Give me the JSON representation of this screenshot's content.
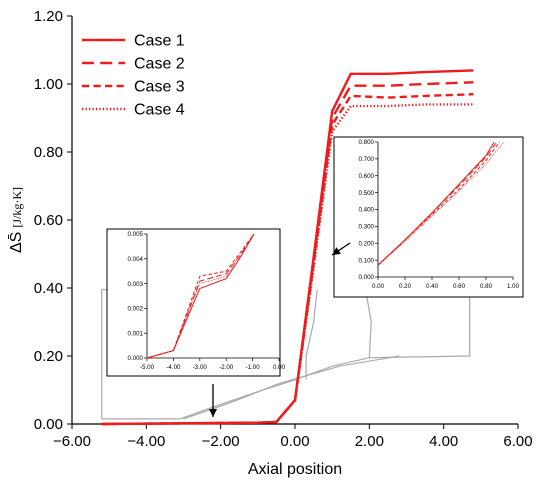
{
  "chart_data": [
    {
      "type": "line",
      "xlabel": "Axial position",
      "ylabel_prefix": "ΔS̄",
      "ylabel_unit": "[J/kg·K]",
      "xlim": [
        -6,
        6
      ],
      "ylim": [
        0,
        1.2
      ],
      "x_ticks": [
        -6,
        -4,
        -2,
        0,
        2,
        4,
        6
      ],
      "x_tick_labels": [
        "−6.00",
        "−4.00",
        "−2.00",
        "0.00",
        "2.00",
        "4.00",
        "6.00"
      ],
      "y_ticks": [
        0,
        0.2,
        0.4,
        0.6,
        0.8,
        1.0,
        1.2
      ],
      "y_tick_labels": [
        "0.00",
        "0.20",
        "0.40",
        "0.60",
        "0.80",
        "1.00",
        "1.20"
      ],
      "grid": false,
      "legend_position": "top-left",
      "series": [
        {
          "name": "Case 1",
          "color": "#ee1c1c",
          "dash": "solid",
          "x": [
            -5.2,
            -3,
            -1,
            -0.5,
            0,
            0.5,
            1.0,
            1.5,
            2.5,
            3.5,
            4.8
          ],
          "y": [
            0.0,
            0.002,
            0.004,
            0.006,
            0.07,
            0.49,
            0.92,
            1.03,
            1.03,
            1.035,
            1.04
          ]
        },
        {
          "name": "Case 2",
          "color": "#ee1c1c",
          "dash": "long",
          "x": [
            -5.2,
            -3,
            -1,
            -0.5,
            0,
            0.5,
            1.0,
            1.5,
            2.5,
            3.5,
            4.8
          ],
          "y": [
            0.0,
            0.002,
            0.004,
            0.006,
            0.07,
            0.48,
            0.9,
            0.995,
            0.995,
            1.0,
            1.005
          ]
        },
        {
          "name": "Case 3",
          "color": "#ee1c1c",
          "dash": "medium",
          "x": [
            -5.2,
            -3,
            -1,
            -0.5,
            0,
            0.5,
            1.0,
            1.5,
            2.5,
            3.5,
            4.8
          ],
          "y": [
            0.0,
            0.002,
            0.004,
            0.006,
            0.07,
            0.47,
            0.88,
            0.965,
            0.96,
            0.965,
            0.97
          ]
        },
        {
          "name": "Case 4",
          "color": "#ee1c1c",
          "dash": "dotted",
          "x": [
            -5.2,
            -3,
            -1,
            -0.5,
            0,
            0.5,
            1.0,
            1.5,
            2.5,
            3.5,
            4.8
          ],
          "y": [
            0.0,
            0.002,
            0.004,
            0.006,
            0.07,
            0.46,
            0.86,
            0.935,
            0.935,
            0.94,
            0.94
          ]
        }
      ],
      "geometry_outline_color": "#aaaaaa"
    },
    {
      "type": "line",
      "name": "inset-left",
      "xlim": [
        -5,
        0
      ],
      "ylim": [
        0,
        0.005
      ],
      "x_ticks": [
        -5,
        -4,
        -3,
        -2,
        -1,
        0
      ],
      "x_tick_labels": [
        "-5.00",
        "-4.00",
        "-3.00",
        "-2.00",
        "-1.00",
        "0.00"
      ],
      "y_ticks": [
        0,
        0.001,
        0.002,
        0.003,
        0.004,
        0.005
      ],
      "y_tick_labels": [
        "0.000",
        "0.001",
        "0.002",
        "0.003",
        "0.004",
        "0.005"
      ],
      "series": [
        {
          "name": "Case 1",
          "x": [
            -5,
            -4,
            -3,
            -2,
            -1.5,
            -0.95
          ],
          "y": [
            0,
            0.0003,
            0.0028,
            0.0032,
            0.004,
            0.005
          ]
        },
        {
          "name": "Case 2",
          "x": [
            -5,
            -4,
            -3,
            -2,
            -1.5,
            -0.95
          ],
          "y": [
            0,
            0.0003,
            0.0031,
            0.0034,
            0.0041,
            0.005
          ]
        },
        {
          "name": "Case 3",
          "x": [
            -5,
            -4,
            -3,
            -2,
            -1.5,
            -0.95
          ],
          "y": [
            0,
            0.0003,
            0.0033,
            0.0035,
            0.0042,
            0.005
          ]
        },
        {
          "name": "Case 4",
          "x": [
            -5,
            -4,
            -3,
            -2,
            -1.5,
            -0.95
          ],
          "y": [
            0,
            0.0003,
            0.003,
            0.0033,
            0.004,
            0.005
          ]
        }
      ]
    },
    {
      "type": "line",
      "name": "inset-right",
      "xlim": [
        0,
        1
      ],
      "ylim": [
        0,
        0.8
      ],
      "x_ticks": [
        0,
        0.2,
        0.4,
        0.6,
        0.8,
        1.0
      ],
      "x_tick_labels": [
        "0.00",
        "0.20",
        "0.40",
        "0.60",
        "0.80",
        "1.00"
      ],
      "y_ticks": [
        0,
        0.1,
        0.2,
        0.3,
        0.4,
        0.5,
        0.6,
        0.7,
        0.8
      ],
      "y_tick_labels": [
        "0.000",
        "0.100",
        "0.200",
        "0.300",
        "0.400",
        "0.500",
        "0.600",
        "0.700",
        "0.800"
      ],
      "series": [
        {
          "name": "Case 1",
          "x": [
            0,
            0.2,
            0.4,
            0.6,
            0.8,
            0.86
          ],
          "y": [
            0.07,
            0.22,
            0.38,
            0.55,
            0.72,
            0.8
          ]
        },
        {
          "name": "Case 2",
          "x": [
            0,
            0.2,
            0.4,
            0.6,
            0.8,
            0.88
          ],
          "y": [
            0.07,
            0.22,
            0.38,
            0.54,
            0.71,
            0.8
          ]
        },
        {
          "name": "Case 3",
          "x": [
            0,
            0.2,
            0.4,
            0.6,
            0.8,
            0.9
          ],
          "y": [
            0.07,
            0.22,
            0.37,
            0.52,
            0.69,
            0.8
          ]
        },
        {
          "name": "Case 4",
          "x": [
            0,
            0.2,
            0.4,
            0.6,
            0.8,
            0.93
          ],
          "y": [
            0.07,
            0.21,
            0.36,
            0.51,
            0.67,
            0.8
          ]
        }
      ]
    }
  ]
}
